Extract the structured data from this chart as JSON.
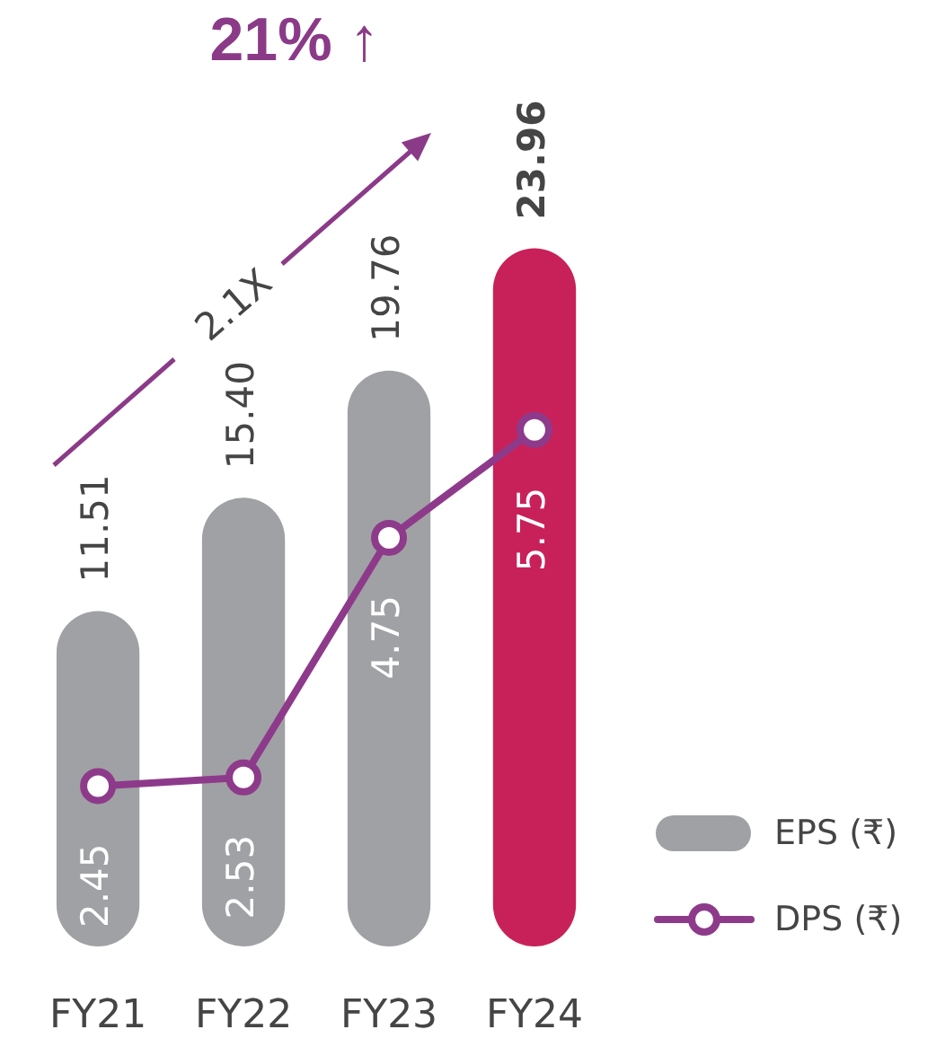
{
  "chart_data": {
    "type": "bar",
    "categories": [
      "FY21",
      "FY22",
      "FY23",
      "FY24"
    ],
    "series": [
      {
        "name": "EPS (₹)",
        "color": "#a0a1a4",
        "colors": [
          "#a0a1a4",
          "#a0a1a4",
          "#a0a1a4",
          "#c8215a"
        ],
        "values": [
          11.51,
          15.4,
          19.76,
          23.96
        ],
        "value_labels": [
          "11.51",
          "15.40",
          "19.76",
          "23.96"
        ]
      },
      {
        "name": "DPS (₹)",
        "type": "line",
        "color": "#8e3a8b",
        "axis": "y2",
        "values": [
          2.45,
          2.53,
          4.75,
          5.75
        ],
        "value_labels": [
          "2.45",
          "2.53",
          "4.75",
          "5.75"
        ]
      }
    ],
    "tick_labels": "x",
    "legend": "bottom right",
    "marker": "circle",
    "annotations": [
      "21% ↑",
      "2.1X"
    ]
  }
}
